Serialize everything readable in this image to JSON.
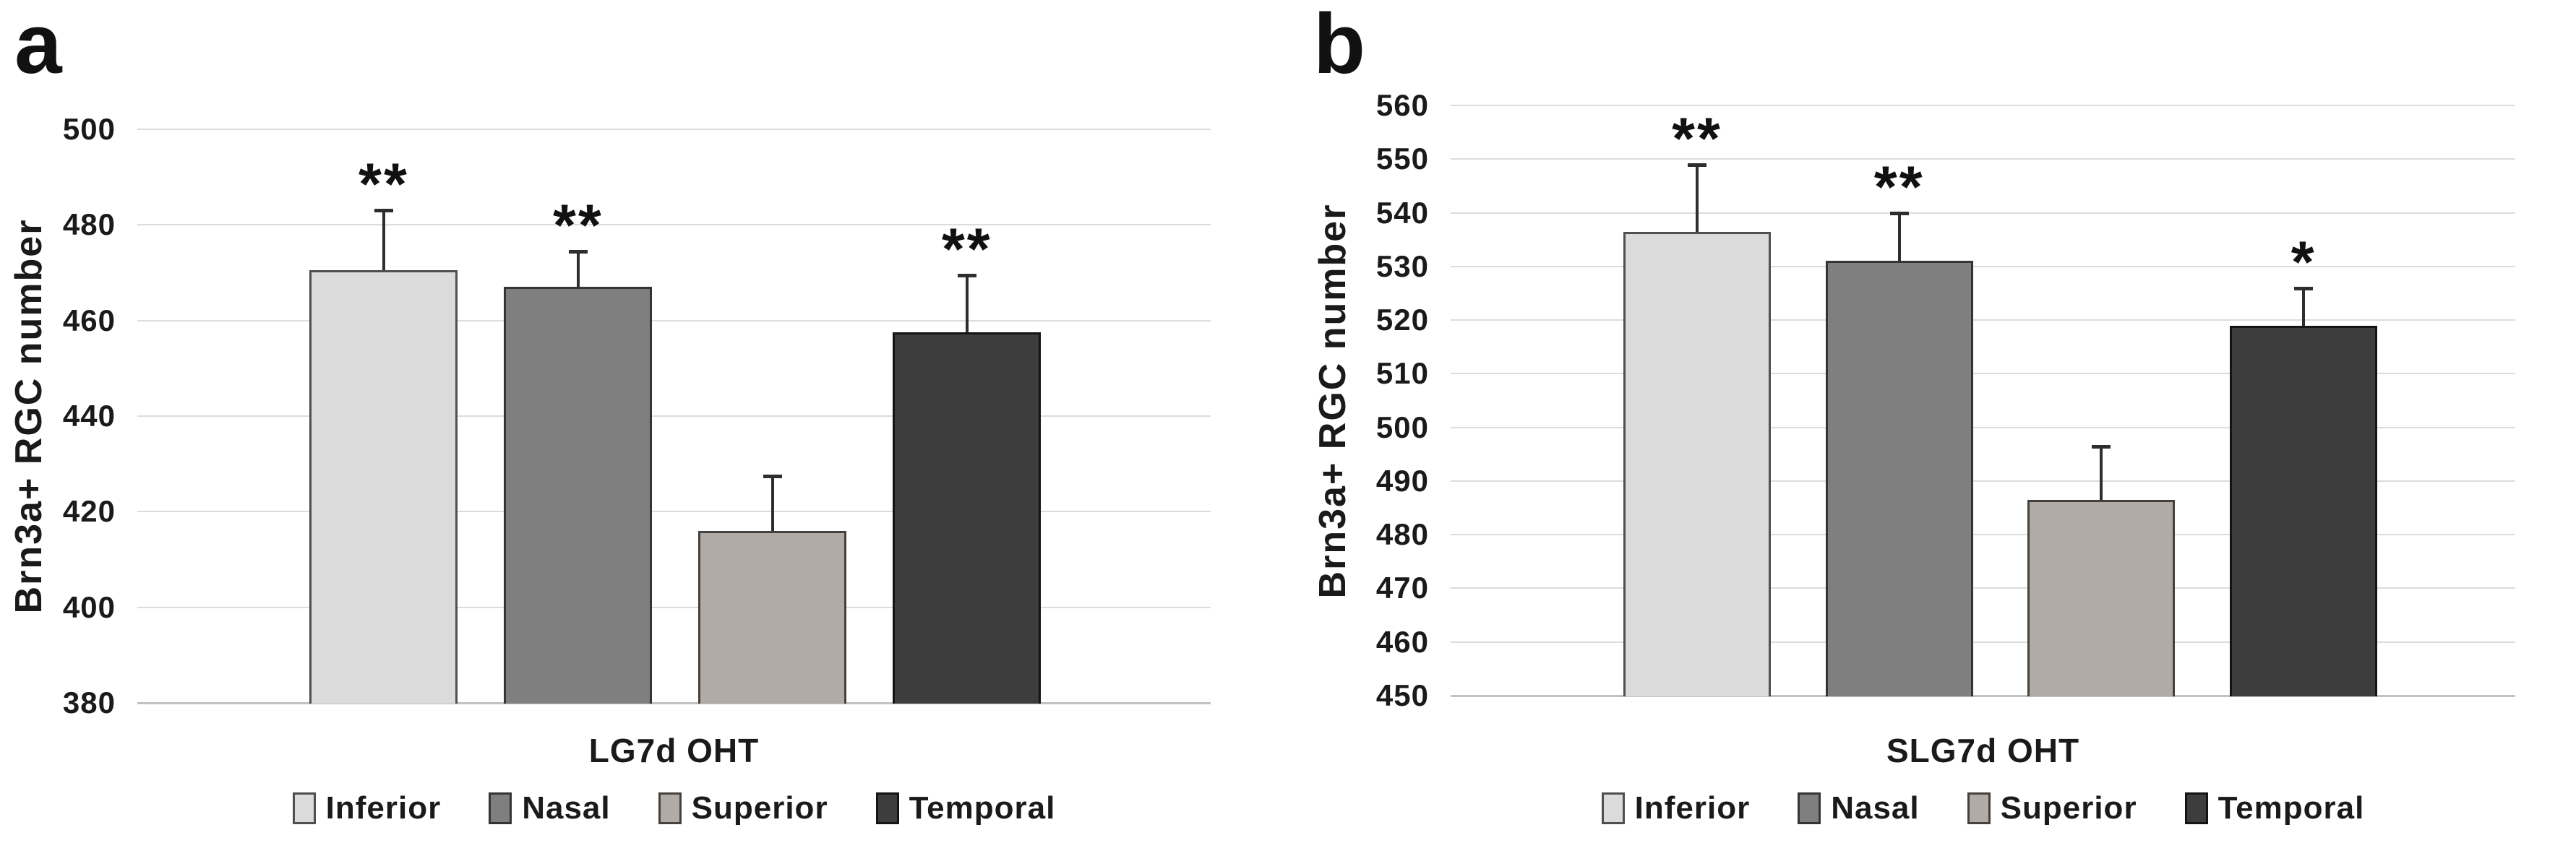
{
  "figure_title": "",
  "style": {
    "background": "#ffffff",
    "text_color": "#1a1a1a",
    "gridline_color": "#dcdcdc",
    "baseline_color": "#c2c2c2",
    "error_bar_color": "#2e2e2e",
    "series_fill_colors": [
      "#dbdbdb",
      "#7f7f7f",
      "#b1aba7",
      "#3d3d3d"
    ],
    "series_border_colors": [
      "#4f4f4f",
      "#343434",
      "#47413c",
      "#141414"
    ]
  },
  "chart_data": [
    {
      "type": "bar",
      "panel_letter": "a",
      "title": "",
      "xlabel": "LG7d OHT",
      "ylabel": "Brn3a+ RGC number",
      "ylim": [
        380,
        500
      ],
      "ytick_step": 20,
      "yticks": [
        380,
        400,
        420,
        440,
        460,
        480,
        500
      ],
      "grid": true,
      "legend_position": "bottom",
      "categories": [
        "Inferior",
        "Nasal",
        "Superior",
        "Temporal"
      ],
      "values": [
        470.5,
        467,
        416,
        457.5
      ],
      "error_top": [
        483,
        474.5,
        427.5,
        469.5
      ],
      "significance": [
        "**",
        "**",
        "",
        "**"
      ]
    },
    {
      "type": "bar",
      "panel_letter": "b",
      "title": "",
      "xlabel": "SLG7d OHT",
      "ylabel": "Brn3a+ RGC number",
      "ylim": [
        450,
        560
      ],
      "ytick_step": 10,
      "yticks": [
        450,
        460,
        470,
        480,
        490,
        500,
        510,
        520,
        530,
        540,
        550,
        560
      ],
      "grid": true,
      "legend_position": "bottom",
      "categories": [
        "Inferior",
        "Nasal",
        "Superior",
        "Temporal"
      ],
      "values": [
        536.5,
        531,
        486.5,
        519
      ],
      "error_top": [
        549,
        540,
        496.5,
        526
      ],
      "significance": [
        "**",
        "**",
        "",
        "*"
      ]
    }
  ]
}
